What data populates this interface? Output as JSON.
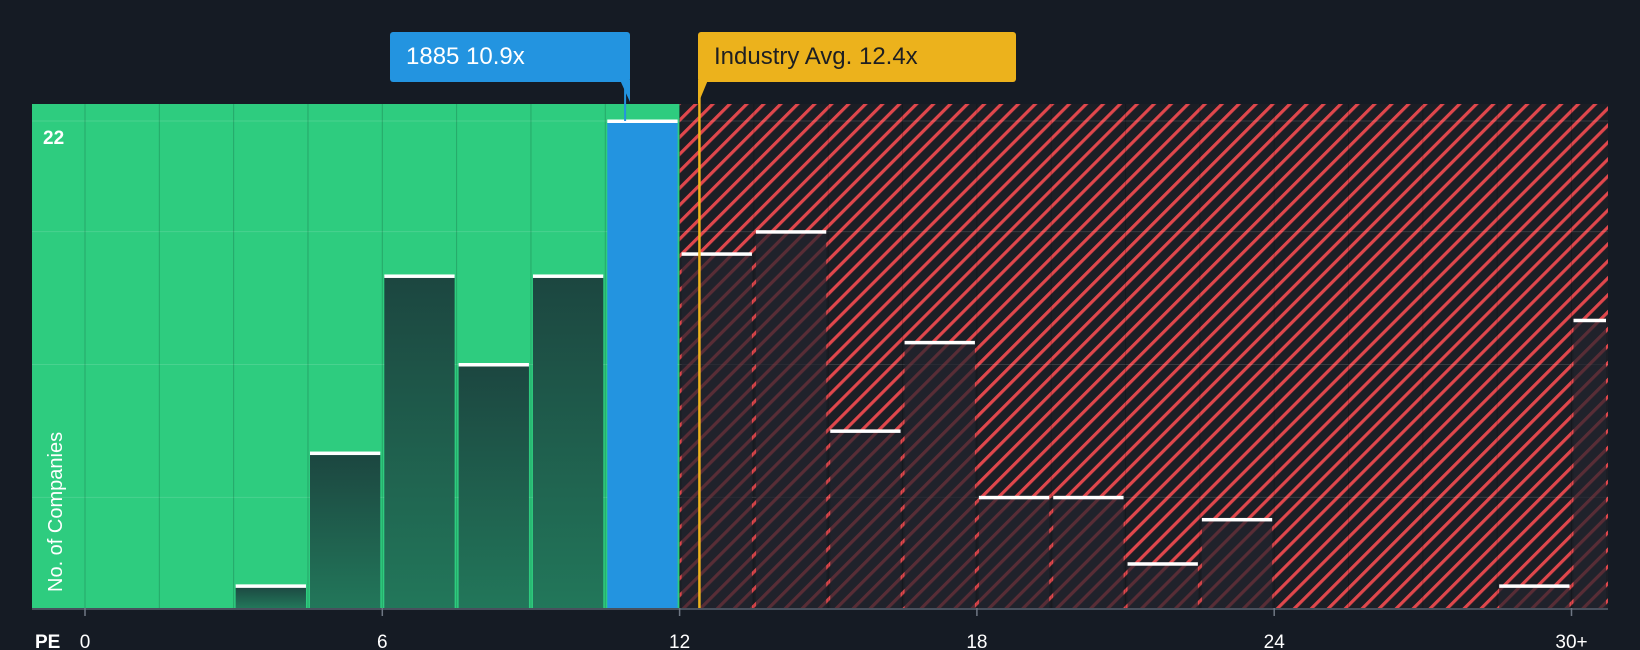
{
  "chart_data": {
    "type": "bar",
    "x_axis_label": "PE",
    "y_axis_label": "No. of Companies",
    "x_ticks": [
      {
        "value": 0,
        "label": "0"
      },
      {
        "value": 6,
        "label": "6"
      },
      {
        "value": 12,
        "label": "12"
      },
      {
        "value": 18,
        "label": "18"
      },
      {
        "value": 24,
        "label": "24"
      },
      {
        "value": 30,
        "label": "30+"
      }
    ],
    "y_tick_label": "22",
    "ylim": [
      0,
      22
    ],
    "xlim": [
      0,
      30.8
    ],
    "bins": [
      {
        "from": 3.0,
        "to": 4.5,
        "count": 1
      },
      {
        "from": 4.5,
        "to": 6.0,
        "count": 7
      },
      {
        "from": 6.0,
        "to": 7.5,
        "count": 15
      },
      {
        "from": 7.5,
        "to": 9.0,
        "count": 11
      },
      {
        "from": 9.0,
        "to": 10.5,
        "count": 15
      },
      {
        "from": 10.5,
        "to": 12.0,
        "count": 22,
        "highlight": true
      },
      {
        "from": 12.0,
        "to": 13.5,
        "count": 16
      },
      {
        "from": 13.5,
        "to": 15.0,
        "count": 17
      },
      {
        "from": 15.0,
        "to": 16.5,
        "count": 8
      },
      {
        "from": 16.5,
        "to": 18.0,
        "count": 12
      },
      {
        "from": 18.0,
        "to": 19.5,
        "count": 5
      },
      {
        "from": 19.5,
        "to": 21.0,
        "count": 5
      },
      {
        "from": 21.0,
        "to": 22.5,
        "count": 2
      },
      {
        "from": 22.5,
        "to": 24.0,
        "count": 4
      },
      {
        "from": 28.5,
        "to": 30.0,
        "count": 1
      },
      {
        "from": 30.0,
        "to": 31.5,
        "count": 13
      }
    ],
    "company": {
      "value": 10.9,
      "label": "1885 10.9x"
    },
    "industry": {
      "value": 12.4,
      "label": "Industry Avg. 12.4x"
    },
    "colors": {
      "background": "#151b24",
      "undervalued": "#2ecc7f",
      "overvalued_hatch": "#e0474c",
      "highlight_bar": "#2394e0",
      "industry": "#ecb21c",
      "bar_cap": "#ffffff"
    }
  }
}
